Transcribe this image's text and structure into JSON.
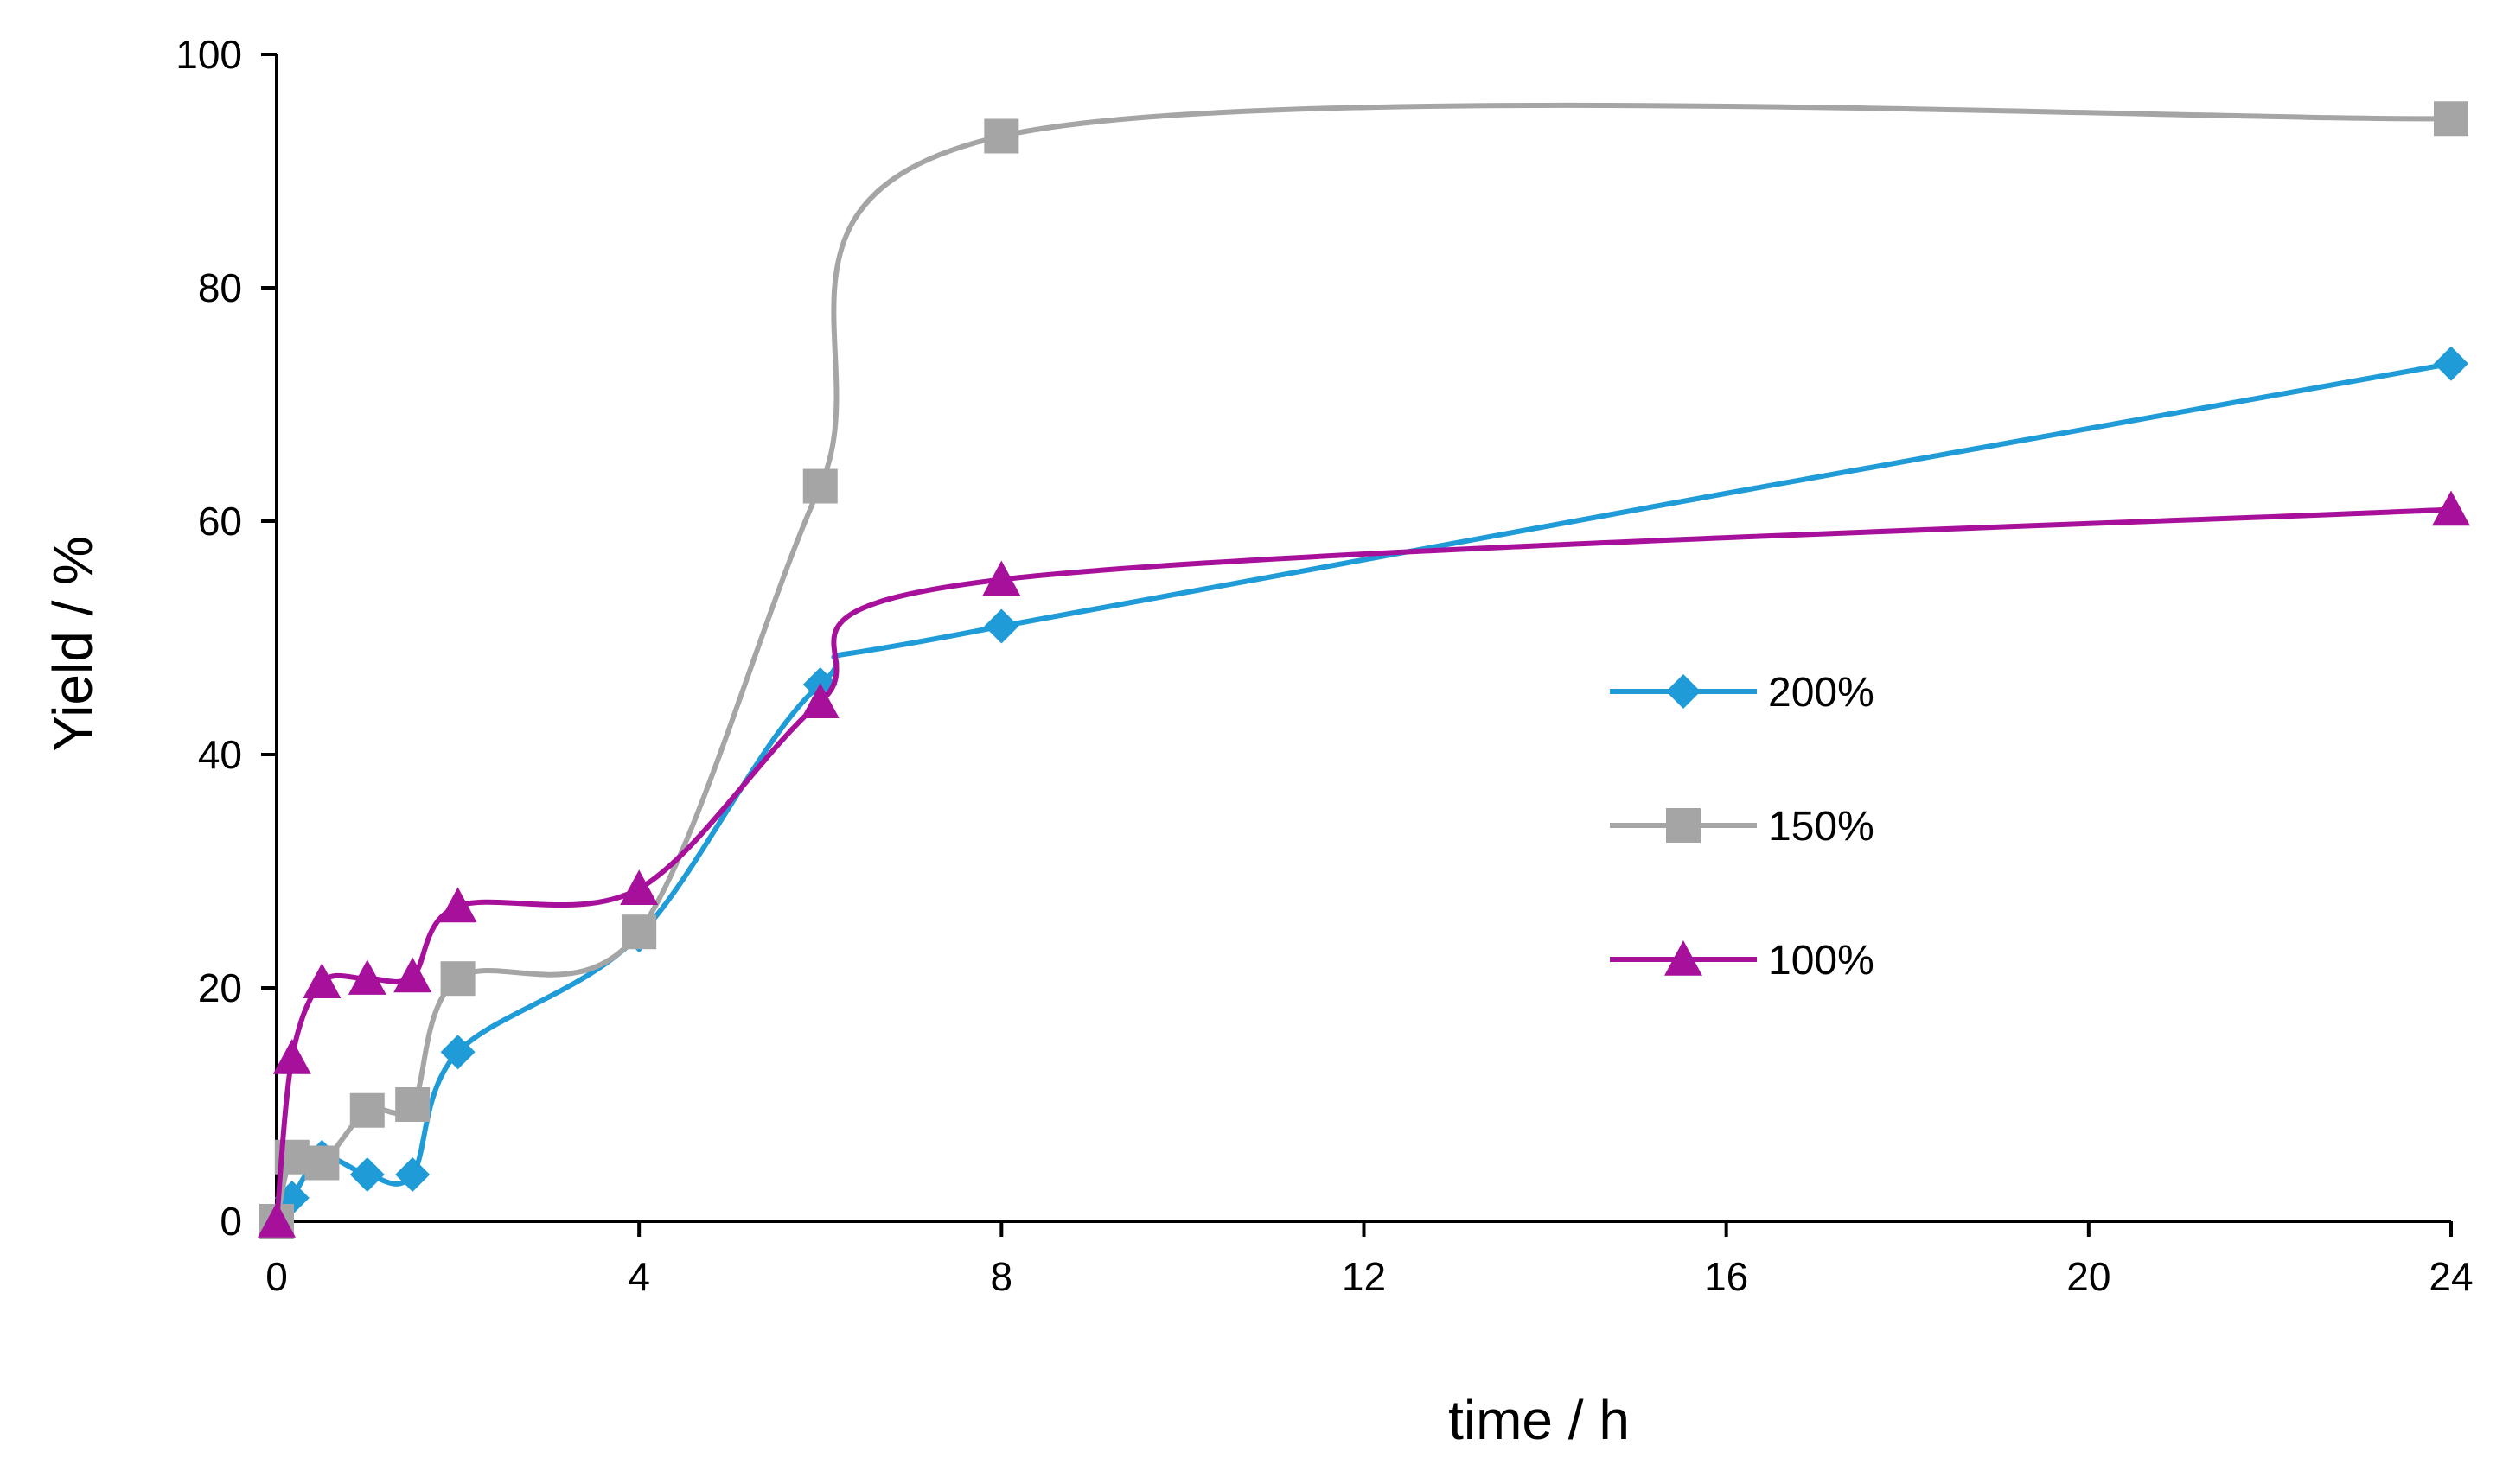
{
  "chart_data": {
    "type": "line",
    "smooth": true,
    "xlabel": "time / h",
    "ylabel": "Yield / %",
    "xlim": [
      0,
      24
    ],
    "ylim": [
      0,
      100
    ],
    "xticks": [
      0,
      4,
      8,
      12,
      16,
      20,
      24
    ],
    "yticks": [
      0,
      20,
      40,
      60,
      80,
      100
    ],
    "xtick_labels": [
      "0",
      "4",
      "8",
      "12",
      "16",
      "20",
      "24"
    ],
    "ytick_labels": [
      "0",
      "20",
      "40",
      "60",
      "80",
      "100"
    ],
    "grid": false,
    "legend_position": "center-right",
    "series": [
      {
        "name": "200%",
        "color": "#1f9bd7",
        "marker": "diamond",
        "x": [
          0,
          0.17,
          0.5,
          1,
          1.5,
          2,
          4,
          6,
          8,
          24
        ],
        "y": [
          0,
          2,
          5.5,
          4,
          4,
          14.5,
          24.5,
          46,
          51,
          73.5
        ]
      },
      {
        "name": "150%",
        "color": "#a5a5a5",
        "marker": "square",
        "x": [
          0,
          0.17,
          0.5,
          1,
          1.5,
          2,
          4,
          6,
          8,
          24
        ],
        "y": [
          0,
          5.5,
          5,
          9.5,
          10,
          20.8,
          24.8,
          63,
          93,
          94.5
        ]
      },
      {
        "name": "100%",
        "color": "#a7109b",
        "marker": "triangle",
        "x": [
          0,
          0.17,
          0.5,
          1,
          1.5,
          2,
          4,
          6,
          8,
          24
        ],
        "y": [
          0,
          14,
          20.5,
          20.8,
          21,
          27,
          28.5,
          44.5,
          55,
          61
        ]
      }
    ]
  }
}
